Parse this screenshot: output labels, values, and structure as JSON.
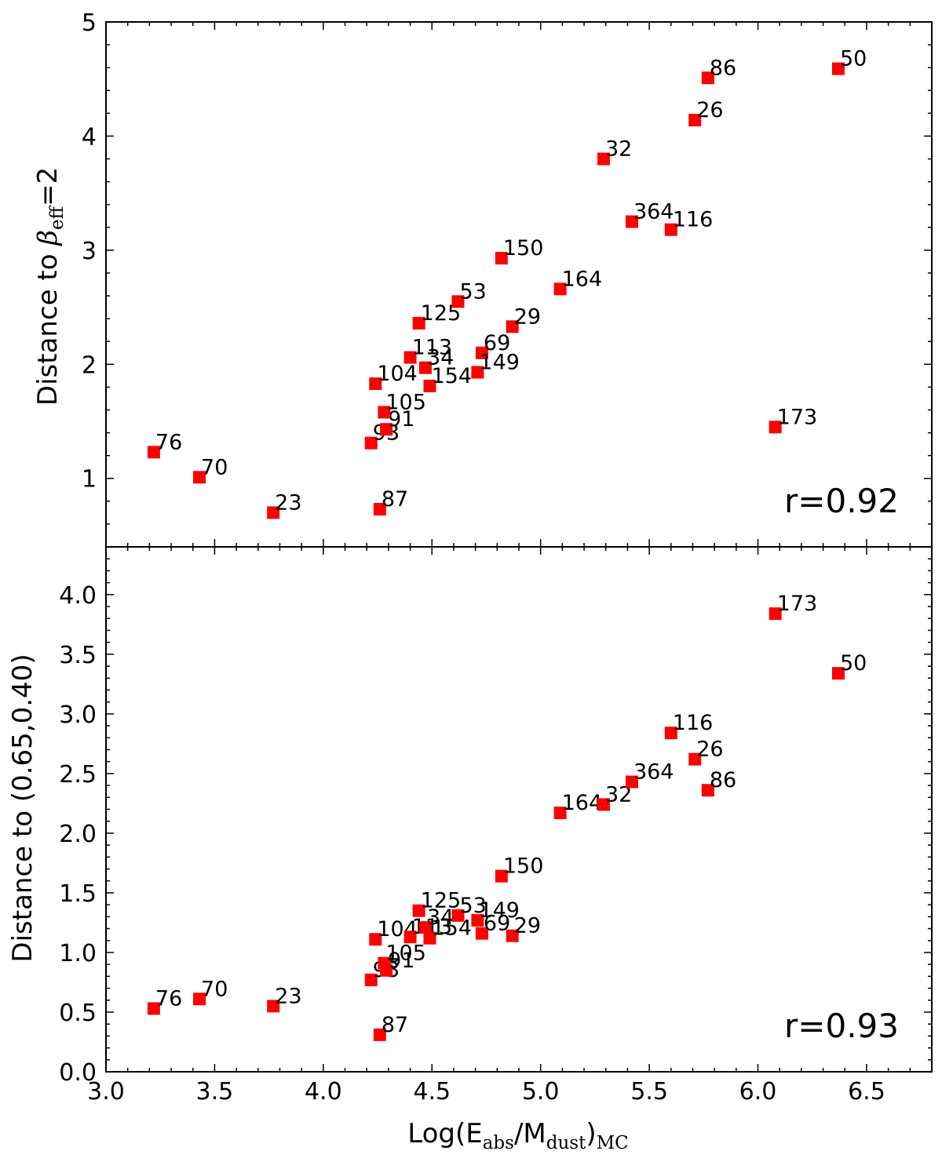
{
  "chart_data": [
    {
      "type": "scatter",
      "title": "",
      "xlabel": "Log(E_abs/M_dust)_MC",
      "ylabel": "Distance to β_eff=2",
      "ylabel_parts": {
        "main": "Distance to ",
        "symbol": "β",
        "sub": "eff",
        "tail": "=2"
      },
      "xlim": [
        3.0,
        6.8
      ],
      "ylim": [
        0.4,
        5.0
      ],
      "yticks": [
        1,
        2,
        3,
        4,
        5
      ],
      "annotation": "r=0.92",
      "marker_color": "#ff0000",
      "points": [
        {
          "label": "76",
          "x": 3.22,
          "y": 1.23
        },
        {
          "label": "70",
          "x": 3.43,
          "y": 1.01
        },
        {
          "label": "23",
          "x": 3.77,
          "y": 0.7
        },
        {
          "label": "87",
          "x": 4.26,
          "y": 0.73
        },
        {
          "label": "93",
          "x": 4.22,
          "y": 1.31
        },
        {
          "label": "91",
          "x": 4.29,
          "y": 1.43
        },
        {
          "label": "105",
          "x": 4.28,
          "y": 1.58
        },
        {
          "label": "104",
          "x": 4.24,
          "y": 1.83
        },
        {
          "label": "113",
          "x": 4.4,
          "y": 2.06
        },
        {
          "label": "34",
          "x": 4.47,
          "y": 1.97
        },
        {
          "label": "154",
          "x": 4.49,
          "y": 1.81
        },
        {
          "label": "125",
          "x": 4.44,
          "y": 2.36
        },
        {
          "label": "53",
          "x": 4.62,
          "y": 2.55
        },
        {
          "label": "69",
          "x": 4.73,
          "y": 2.1
        },
        {
          "label": "149",
          "x": 4.71,
          "y": 1.93
        },
        {
          "label": "29",
          "x": 4.87,
          "y": 2.33
        },
        {
          "label": "150",
          "x": 4.82,
          "y": 2.93
        },
        {
          "label": "164",
          "x": 5.09,
          "y": 2.66
        },
        {
          "label": "32",
          "x": 5.29,
          "y": 3.8
        },
        {
          "label": "364",
          "x": 5.42,
          "y": 3.25
        },
        {
          "label": "116",
          "x": 5.6,
          "y": 3.18
        },
        {
          "label": "26",
          "x": 5.71,
          "y": 4.14
        },
        {
          "label": "86",
          "x": 5.77,
          "y": 4.51
        },
        {
          "label": "50",
          "x": 6.37,
          "y": 4.59
        },
        {
          "label": "173",
          "x": 6.08,
          "y": 1.45
        }
      ]
    },
    {
      "type": "scatter",
      "title": "",
      "xlabel": "Log(E_abs/M_dust)_MC",
      "xlabel_parts": {
        "a": "Log(E",
        "s1": "abs",
        "b": "/M",
        "s2": "dust",
        "c": ")",
        "s3": "MC"
      },
      "ylabel": "Distance to (0.65,0.40)",
      "xlim": [
        3.0,
        6.8
      ],
      "ylim": [
        0.0,
        4.4
      ],
      "xticks": [
        "3.0",
        "3.5",
        "4.0",
        "4.5",
        "5.0",
        "5.5",
        "6.0",
        "6.5"
      ],
      "yticks": [
        "0.0",
        "0.5",
        "1.0",
        "1.5",
        "2.0",
        "2.5",
        "3.0",
        "3.5",
        "4.0"
      ],
      "annotation": "r=0.93",
      "marker_color": "#ff0000",
      "points": [
        {
          "label": "76",
          "x": 3.22,
          "y": 0.53
        },
        {
          "label": "70",
          "x": 3.43,
          "y": 0.61
        },
        {
          "label": "23",
          "x": 3.77,
          "y": 0.55
        },
        {
          "label": "87",
          "x": 4.26,
          "y": 0.31
        },
        {
          "label": "93",
          "x": 4.22,
          "y": 0.77
        },
        {
          "label": "91",
          "x": 4.29,
          "y": 0.85
        },
        {
          "label": "105",
          "x": 4.28,
          "y": 0.91
        },
        {
          "label": "104",
          "x": 4.24,
          "y": 1.11
        },
        {
          "label": "113",
          "x": 4.4,
          "y": 1.13
        },
        {
          "label": "34",
          "x": 4.47,
          "y": 1.21
        },
        {
          "label": "154",
          "x": 4.49,
          "y": 1.12
        },
        {
          "label": "125",
          "x": 4.44,
          "y": 1.35
        },
        {
          "label": "53",
          "x": 4.62,
          "y": 1.31
        },
        {
          "label": "149",
          "x": 4.71,
          "y": 1.27
        },
        {
          "label": "69",
          "x": 4.73,
          "y": 1.16
        },
        {
          "label": "29",
          "x": 4.87,
          "y": 1.14
        },
        {
          "label": "150",
          "x": 4.82,
          "y": 1.64
        },
        {
          "label": "164",
          "x": 5.09,
          "y": 2.17
        },
        {
          "label": "32",
          "x": 5.29,
          "y": 2.24
        },
        {
          "label": "364",
          "x": 5.42,
          "y": 2.43
        },
        {
          "label": "116",
          "x": 5.6,
          "y": 2.84
        },
        {
          "label": "26",
          "x": 5.71,
          "y": 2.62
        },
        {
          "label": "86",
          "x": 5.77,
          "y": 2.36
        },
        {
          "label": "173",
          "x": 6.08,
          "y": 3.84
        },
        {
          "label": "50",
          "x": 6.37,
          "y": 3.34
        }
      ]
    }
  ]
}
